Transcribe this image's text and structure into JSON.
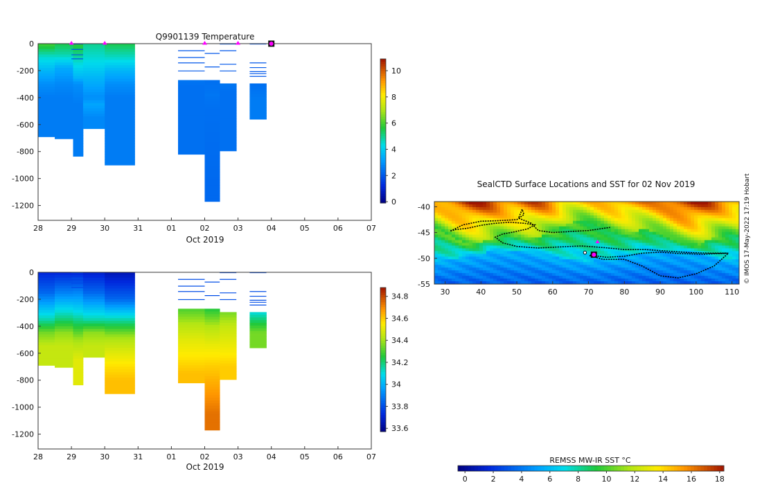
{
  "chart_data": [
    {
      "type": "heatmap",
      "name": "temperature-section",
      "title": "Q9901139  Temperature",
      "xlabel": "Oct 2019",
      "ylabel": "",
      "x_tick_labels": [
        "28",
        "29",
        "30",
        "31",
        "01",
        "02",
        "03",
        "04",
        "05",
        "06",
        "07"
      ],
      "y_ticks": [
        0,
        -200,
        -400,
        -600,
        -800,
        -1000,
        -1200
      ],
      "ylim": [
        -1310,
        0
      ],
      "colorbar": {
        "ticks": [
          0,
          2,
          4,
          6,
          8,
          10
        ],
        "min": -0.1,
        "max": 10.9
      },
      "surface_markers_day": [
        1,
        2,
        5,
        6
      ],
      "current_position_day": 7,
      "profiles": [
        {
          "start": 0,
          "end": 0.5,
          "depth": 690,
          "layers": [
            [
              0,
              6.0
            ],
            [
              100,
              4.5
            ],
            [
              200,
              3.6
            ],
            [
              300,
              2.9
            ],
            [
              400,
              2.6
            ]
          ]
        },
        {
          "start": 0.5,
          "end": 1.05,
          "depth": 705,
          "layers": [
            [
              0,
              5.5
            ],
            [
              80,
              4.8
            ],
            [
              180,
              3.4
            ],
            [
              300,
              2.8
            ],
            [
              400,
              2.6
            ]
          ]
        },
        {
          "start": 1.05,
          "end": 1.35,
          "depth": 835,
          "layers": [
            [
              0,
              5.8
            ],
            [
              150,
              4.4
            ],
            [
              250,
              3.6
            ],
            [
              300,
              2.9
            ],
            [
              450,
              2.6
            ]
          ]
        },
        {
          "start": 1.35,
          "end": 2.0,
          "depth": 630,
          "layers": [
            [
              0,
              5.0
            ],
            [
              120,
              4.4
            ],
            [
              250,
              3.6
            ],
            [
              400,
              2.9
            ],
            [
              450,
              3.3
            ],
            [
              550,
              2.8
            ]
          ]
        },
        {
          "start": 2.0,
          "end": 2.9,
          "depth": 900,
          "layers": [
            [
              0,
              5.5
            ],
            [
              100,
              4.6
            ],
            [
              200,
              3.6
            ],
            [
              300,
              2.9
            ],
            [
              400,
              2.6
            ]
          ]
        },
        {
          "start": 4.2,
          "end": 5.0,
          "depth": 820,
          "layers": [
            [
              270,
              2.5
            ],
            [
              320,
              2.4
            ]
          ]
        },
        {
          "start": 5.0,
          "end": 5.45,
          "depth": 1170,
          "layers": [
            [
              270,
              2.4
            ],
            [
              380,
              2.5
            ],
            [
              480,
              2.4
            ],
            [
              1000,
              2.3
            ]
          ]
        },
        {
          "start": 5.45,
          "end": 5.95,
          "depth": 795,
          "layers": [
            [
              295,
              2.5
            ],
            [
              360,
              2.4
            ]
          ]
        },
        {
          "start": 6.35,
          "end": 6.85,
          "depth": 560,
          "layers": [
            [
              295,
              2.4
            ],
            [
              420,
              2.6
            ]
          ]
        }
      ],
      "thin_lines": [
        {
          "start": 1.0,
          "end": 1.35,
          "depths": [
            0,
            40,
            80,
            110
          ]
        },
        {
          "start": 4.2,
          "end": 5.0,
          "depths": [
            50,
            100,
            140,
            200
          ]
        },
        {
          "start": 5.0,
          "end": 5.45,
          "depths": [
            70,
            170
          ]
        },
        {
          "start": 5.45,
          "end": 5.95,
          "depths": [
            0,
            50,
            150,
            200
          ]
        },
        {
          "start": 6.35,
          "end": 6.85,
          "depths": [
            0,
            140,
            175,
            205,
            220,
            240
          ]
        }
      ],
      "thin_line_value": 2.0
    },
    {
      "type": "heatmap",
      "name": "salinity-section",
      "title": "",
      "xlabel": "Oct 2019",
      "ylabel": "",
      "x_tick_labels": [
        "28",
        "29",
        "30",
        "31",
        "01",
        "02",
        "03",
        "04",
        "05",
        "06",
        "07"
      ],
      "y_ticks": [
        0,
        -200,
        -400,
        -600,
        -800,
        -1000,
        -1200
      ],
      "ylim": [
        -1310,
        0
      ],
      "colorbar": {
        "ticks": [
          33.6,
          33.8,
          34,
          34.2,
          34.4,
          34.6,
          34.8
        ],
        "min": 33.57,
        "max": 34.88
      },
      "profiles": [
        {
          "start": 0,
          "end": 0.5,
          "depth": 690,
          "layers": [
            [
              0,
              33.72
            ],
            [
              150,
              33.85
            ],
            [
              250,
              34.0
            ],
            [
              350,
              34.15
            ],
            [
              450,
              34.35
            ],
            [
              550,
              34.45
            ]
          ]
        },
        {
          "start": 0.5,
          "end": 1.05,
          "depth": 705,
          "layers": [
            [
              0,
              33.72
            ],
            [
              150,
              33.9
            ],
            [
              250,
              34.05
            ],
            [
              350,
              34.2
            ],
            [
              450,
              34.38
            ],
            [
              550,
              34.45
            ]
          ]
        },
        {
          "start": 1.05,
          "end": 1.35,
          "depth": 835,
          "layers": [
            [
              0,
              33.72
            ],
            [
              300,
              34.1
            ],
            [
              400,
              34.25
            ],
            [
              500,
              34.4
            ],
            [
              650,
              34.5
            ]
          ]
        },
        {
          "start": 1.35,
          "end": 2.0,
          "depth": 630,
          "layers": [
            [
              0,
              33.7
            ],
            [
              150,
              33.85
            ],
            [
              250,
              34.0
            ],
            [
              350,
              34.15
            ],
            [
              450,
              34.38
            ],
            [
              550,
              34.45
            ]
          ]
        },
        {
          "start": 2.0,
          "end": 2.9,
          "depth": 900,
          "layers": [
            [
              0,
              33.66
            ],
            [
              200,
              33.85
            ],
            [
              300,
              34.05
            ],
            [
              400,
              34.25
            ],
            [
              480,
              34.4
            ],
            [
              600,
              34.5
            ],
            [
              700,
              34.57
            ],
            [
              800,
              34.62
            ]
          ]
        },
        {
          "start": 4.2,
          "end": 5.0,
          "depth": 820,
          "layers": [
            [
              270,
              34.3
            ],
            [
              380,
              34.42
            ],
            [
              500,
              34.5
            ],
            [
              650,
              34.57
            ],
            [
              750,
              34.62
            ]
          ]
        },
        {
          "start": 5.0,
          "end": 5.45,
          "depth": 1170,
          "layers": [
            [
              270,
              34.25
            ],
            [
              400,
              34.42
            ],
            [
              550,
              34.52
            ],
            [
              700,
              34.6
            ],
            [
              900,
              34.68
            ],
            [
              1050,
              34.74
            ]
          ]
        },
        {
          "start": 5.45,
          "end": 5.95,
          "depth": 795,
          "layers": [
            [
              295,
              34.35
            ],
            [
              400,
              34.45
            ],
            [
              550,
              34.52
            ],
            [
              700,
              34.6
            ]
          ]
        },
        {
          "start": 6.35,
          "end": 6.85,
          "depth": 560,
          "layers": [
            [
              295,
              34.1
            ],
            [
              380,
              34.25
            ],
            [
              450,
              34.35
            ]
          ]
        }
      ],
      "thin_lines": [
        {
          "start": 1.0,
          "end": 1.35,
          "depths": [
            0,
            40,
            80,
            110
          ]
        },
        {
          "start": 4.2,
          "end": 5.0,
          "depths": [
            50,
            100,
            140,
            200
          ]
        },
        {
          "start": 5.0,
          "end": 5.45,
          "depths": [
            70,
            170
          ]
        },
        {
          "start": 5.45,
          "end": 5.95,
          "depths": [
            0,
            50,
            150,
            200
          ]
        },
        {
          "start": 6.35,
          "end": 6.85,
          "depths": [
            0,
            140,
            175,
            205,
            220,
            240
          ]
        }
      ],
      "thin_line_value": 33.8
    },
    {
      "type": "heatmap",
      "name": "sst-map",
      "title": "SealCTD Surface Locations and SST for 02 Nov 2019",
      "x_tick_labels": [
        "30",
        "40",
        "50",
        "60",
        "70",
        "80",
        "90",
        "100",
        "110"
      ],
      "x_ticks": [
        30,
        40,
        50,
        60,
        70,
        80,
        90,
        100,
        110
      ],
      "y_tick_labels": [
        "-40",
        "-45",
        "-50",
        "-55"
      ],
      "y_ticks": [
        -40,
        -45,
        -50,
        -55
      ],
      "xlim": [
        27,
        112
      ],
      "ylim": [
        -55,
        -39
      ],
      "colorbar": {
        "label": "REMSS MW-IR SST °C",
        "ticks": [
          0,
          2,
          4,
          6,
          8,
          10,
          12,
          14,
          16,
          18
        ],
        "min": -0.5,
        "max": 18.3
      },
      "track": [
        [
          31.5,
          -44.7
        ],
        [
          33,
          -44.4
        ],
        [
          36,
          -44.2
        ],
        [
          40,
          -43.6
        ],
        [
          44,
          -43.2
        ],
        [
          48,
          -43.0
        ],
        [
          52,
          -43.2
        ],
        [
          55,
          -43.5
        ],
        [
          53,
          -44.3
        ],
        [
          49,
          -44.9
        ],
        [
          46,
          -45.3
        ],
        [
          44,
          -45.9
        ],
        [
          46,
          -47.0
        ],
        [
          50,
          -47.7
        ],
        [
          56,
          -48.0
        ],
        [
          62,
          -47.8
        ],
        [
          68,
          -47.6
        ],
        [
          74,
          -47.9
        ],
        [
          80,
          -48.3
        ],
        [
          86,
          -48.3
        ],
        [
          92,
          -48.6
        ],
        [
          98,
          -48.9
        ],
        [
          104,
          -49.0
        ],
        [
          109,
          -49.0
        ],
        [
          105,
          -51.5
        ],
        [
          100,
          -53.0
        ],
        [
          95,
          -53.8
        ],
        [
          90,
          -53.4
        ],
        [
          85,
          -51.5
        ],
        [
          80,
          -50.2
        ],
        [
          74,
          -50.2
        ],
        [
          70,
          -49.4
        ]
      ],
      "track2": [
        [
          31.5,
          -44.7
        ],
        [
          35,
          -43.5
        ],
        [
          40,
          -42.8
        ],
        [
          45,
          -42.7
        ],
        [
          50,
          -42.5
        ],
        [
          52,
          -41.5
        ],
        [
          51.5,
          -40.5
        ],
        [
          50.5,
          -42.2
        ],
        [
          54,
          -43.2
        ],
        [
          56,
          -44.6
        ],
        [
          60,
          -45.0
        ],
        [
          65,
          -44.8
        ],
        [
          70,
          -44.6
        ],
        [
          74,
          -44.2
        ],
        [
          76,
          -44.0
        ]
      ],
      "track3": [
        [
          70.5,
          -49.4
        ],
        [
          75,
          -49.8
        ],
        [
          80,
          -49.6
        ],
        [
          85,
          -49.0
        ],
        [
          90,
          -48.8
        ],
        [
          96,
          -49.1
        ],
        [
          102,
          -49.2
        ],
        [
          108.5,
          -49.0
        ]
      ],
      "locations": [
        [
          69,
          -48.9
        ],
        [
          71,
          -49.4
        ]
      ],
      "current_location": [
        71.5,
        -49.3
      ],
      "magenta_location": [
        72.5,
        -46.8
      ],
      "credit": "© IMOS 17-May-2022 17:19 Hobart"
    }
  ]
}
